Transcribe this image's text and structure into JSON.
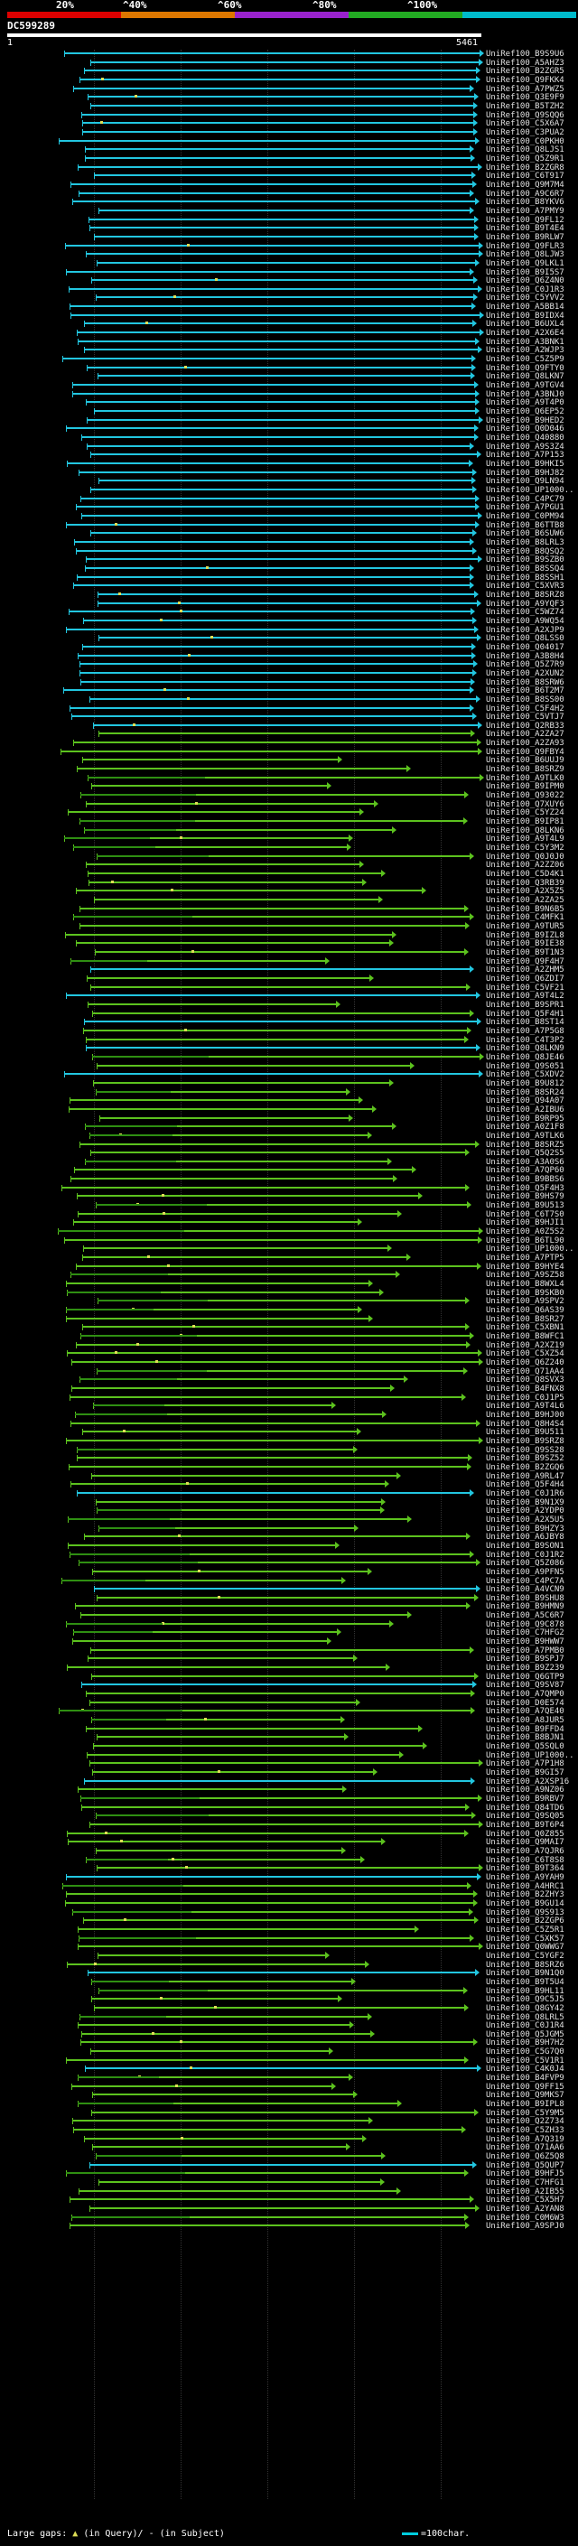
{
  "scale": {
    "labels": [
      "20%",
      "^40%",
      "^60%",
      "^80%",
      "^100%"
    ],
    "colors": [
      "#dd0000",
      "#dd7700",
      "#9922cc",
      "#22aa22",
      "#00bbcc"
    ]
  },
  "query": {
    "name": "DC599289",
    "start": "1",
    "end": "5461"
  },
  "footer": {
    "large_gaps_label": "Large gaps:",
    "in_query_label": "(in Query)/",
    "in_subject_label": "(in Subject)",
    "gap_symbol": "▲",
    "subject_symbol": "-",
    "legend_label": "=100char."
  },
  "colors": {
    "cyan": "#22c6e0",
    "green": "#5cc21e",
    "dark_green": "#2f8f12"
  },
  "hits": [
    "UniRef100_B9S9U6",
    "UniRef100_A5AHZ3",
    "UniRef100_B2ZGR5",
    "UniRef100_Q9FKK4",
    "UniRef100_A7PWZ5",
    "UniRef100_Q3E9F9",
    "UniRef100_B5TZH2",
    "UniRef100_Q9SQQ6",
    "UniRef100_C5X6A7",
    "UniRef100_C3PUA2",
    "UniRef100_C0PKH0",
    "UniRef100_Q8LJS1",
    "UniRef100_Q5Z9R1",
    "UniRef100_B2ZGR8",
    "UniRef100_C6T917",
    "UniRef100_Q9M7M4",
    "UniRef100_A9C6R7",
    "UniRef100_B8YKV6",
    "UniRef100_A7PMY9",
    "UniRef100_Q9FL12",
    "UniRef100_B9T4E4",
    "UniRef100_B9RLW7",
    "UniRef100_Q9FLR3",
    "UniRef100_Q8LJW3",
    "UniRef100_Q9LKL1",
    "UniRef100_B9I5S7",
    "UniRef100_Q6Z4N0",
    "UniRef100_C0J1R3",
    "UniRef100_C5YVV2",
    "UniRef100_A5BB14",
    "UniRef100_B9IDX4",
    "UniRef100_B6UXL4",
    "UniRef100_A2X6E4",
    "UniRef100_A3BNK1",
    "UniRef100_A2WJP3",
    "UniRef100_C5Z5P9",
    "UniRef100_Q9FTY0",
    "UniRef100_Q8LKN7",
    "UniRef100_A9TGV4",
    "UniRef100_A3BNJ0",
    "UniRef100_A9T4P0",
    "UniRef100_Q6EP52",
    "UniRef100_B9HED2",
    "UniRef100_Q0D046",
    "UniRef100_Q40880",
    "UniRef100_A9S3Z4",
    "UniRef100_A7P153",
    "UniRef100_B9HKI5",
    "UniRef100_B9HJ82",
    "UniRef100_Q9LN94",
    "UniRef100_UP1000..",
    "UniRef100_C4PC79",
    "UniRef100_A7PGU1",
    "UniRef100_C0PM94",
    "UniRef100_B6TTB8",
    "UniRef100_B6SUW6",
    "UniRef100_B8LRL3",
    "UniRef100_B8QSQ2",
    "UniRef100_B9SZB0",
    "UniRef100_B8SSQ4",
    "UniRef100_B8SSH1",
    "UniRef100_C5XVR3",
    "UniRef100_B8SRZ8",
    "UniRef100_A9YQF3",
    "UniRef100_C5WZ74",
    "UniRef100_A9WQ54",
    "UniRef100_A2XJP9",
    "UniRef100_Q8LSS0",
    "UniRef100_Q04017",
    "UniRef100_A3B8H4",
    "UniRef100_Q5Z7R9",
    "UniRef100_A2XUN2",
    "UniRef100_B8SRW6",
    "UniRef100_B6T2M7",
    "UniRef100_B8SS00",
    "UniRef100_C5F4H2",
    "UniRef100_C5VTJ7",
    "UniRef100_Q2RB33",
    "UniRef100_A2ZA27",
    "UniRef100_A2ZA93",
    "UniRef100_Q9FBY4",
    "UniRef100_B6UUJ9",
    "UniRef100_B8SRZ9",
    "UniRef100_A9TLK0",
    "UniRef100_B9IPM0",
    "UniRef100_Q93022",
    "UniRef100_Q7XUY6",
    "UniRef100_C5YZ24",
    "UniRef100_B9IP81",
    "UniRef100_Q8LKN6",
    "UniRef100_A9T4L9",
    "UniRef100_C5Y3M2",
    "UniRef100_Q0J0J0",
    "UniRef100_A2ZZ06",
    "UniRef100_C5D4K1",
    "UniRef100_Q3RB39",
    "UniRef100_A2X5Z5",
    "UniRef100_A2ZA25",
    "UniRef100_B9N6B5",
    "UniRef100_C4MFK1",
    "UniRef100_A9TUR5",
    "UniRef100_B9IZL8",
    "UniRef100_B9IE38",
    "UniRef100_B9T1N3",
    "UniRef100_Q9F4H7",
    "UniRef100_A2ZHM5",
    "UniRef100_Q6ZDI7",
    "UniRef100_C5VF21",
    "UniRef100_A9T4L2",
    "UniRef100_B9SPR1",
    "UniRef100_Q5F4H1",
    "UniRef100_B8ST14",
    "UniRef100_A7P5G8",
    "UniRef100_C4T3P2",
    "UniRef100_Q8LKN9",
    "UniRef100_Q8JE46",
    "UniRef100_Q9S051",
    "UniRef100_C5XDV2",
    "UniRef100_B9U812",
    "UniRef100_B8SR24",
    "UniRef100_Q94A07",
    "UniRef100_A2IBU6",
    "UniRef100_B9RP95",
    "UniRef100_A0Z1F8",
    "UniRef100_A9TLK6",
    "UniRef100_B8SRZ5",
    "UniRef100_Q5Q2S5",
    "UniRef100_A3A0S6",
    "UniRef100_A7QP60",
    "UniRef100_B9BBS6",
    "UniRef100_Q5F4H3",
    "UniRef100_B9HS79",
    "UniRef100_B9U513",
    "UniRef100_C6T7S0",
    "UniRef100_B9HJI1",
    "UniRef100_A0Z5S2",
    "UniRef100_B6TL90",
    "UniRef100_UP1000..",
    "UniRef100_A7PTP5",
    "UniRef100_B9HYE4",
    "UniRef100_A9SZ58",
    "UniRef100_B8WXL4",
    "UniRef100_B9SKB0",
    "UniRef100_A9SPV2",
    "UniRef100_Q6AS39",
    "UniRef100_B8SR27",
    "UniRef100_C5XBN1",
    "UniRef100_B8WFC1",
    "UniRef100_A2XZ19",
    "UniRef100_C5XZ54",
    "UniRef100_Q6Z240",
    "UniRef100_Q71AA4",
    "UniRef100_Q8SVX3",
    "UniRef100_B4FNX8",
    "UniRef100_C0J1P5",
    "UniRef100_A9T4L6",
    "UniRef100_B9HJ00",
    "UniRef100_Q8H4S4",
    "UniRef100_B9U511",
    "UniRef100_B9SRZ8",
    "UniRef100_Q9SS28",
    "UniRef100_B9SZ52",
    "UniRef100_B2ZGQ6",
    "UniRef100_A9RL47",
    "UniRef100_Q5F4H4",
    "UniRef100_C0J1R6",
    "UniRef100_B9N1X9",
    "UniRef100_A2YDP0",
    "UniRef100_A2X5U5",
    "UniRef100_B9HZY3",
    "UniRef100_A6JBY8",
    "UniRef100_B9SON1",
    "UniRef100_C0J1R2",
    "UniRef100_Q5Z086",
    "UniRef100_A9PFN5",
    "UniRef100_C4PC7A",
    "UniRef100_A4VCN9",
    "UniRef100_B9SHU8",
    "UniRef100_B9HMN9",
    "UniRef100_A5C6R7",
    "UniRef100_Q9C878",
    "UniRef100_C7HFG2",
    "UniRef100_B9HWW7",
    "UniRef100_A7PMB0",
    "UniRef100_B9SPJ7",
    "UniRef100_B9Z239",
    "UniRef100_Q6GTP9",
    "UniRef100_Q9SV87",
    "UniRef100_A7QMP0",
    "UniRef100_D0E574",
    "UniRef100_A7QE40",
    "UniRef100_A8JUR5",
    "UniRef100_B9FFD4",
    "UniRef100_B8BJN1",
    "UniRef100_Q5SQL0",
    "UniRef100_UP1000..",
    "UniRef100_A7P1H8",
    "UniRef100_B9GI57",
    "UniRef100_A2XSP16",
    "UniRef100_A9NZ06",
    "UniRef100_B9RBV7",
    "UniRef100_Q84TD6",
    "UniRef100_Q9SQ05",
    "UniRef100_B9T6P4",
    "UniRef100_Q0Z855",
    "UniRef100_Q9MAI7",
    "UniRef100_A7QJR6",
    "UniRef100_C6T8S8",
    "UniRef100_B9T364",
    "UniRef100_A9YAH9",
    "UniRef100_A4HRC1",
    "UniRef100_B2ZHY3",
    "UniRef100_B9GU14",
    "UniRef100_Q9S913",
    "UniRef100_B2ZGP6",
    "UniRef100_C5Z5R1",
    "UniRef100_C5XK57",
    "UniRef100_Q0WWG7",
    "UniRef100_C5YGF2",
    "UniRef100_B8SRZ6",
    "UniRef100_B9N1Q0",
    "UniRef100_B9T5U4",
    "UniRef100_B9HL11",
    "UniRef100_Q9C5J5",
    "UniRef100_Q8GY42",
    "UniRef100_Q8LRL5",
    "UniRef100_C0J1R4",
    "UniRef100_Q5JGM5",
    "UniRef100_B9H7H2",
    "UniRef100_C5G7Q0",
    "UniRef100_C5V1R1",
    "UniRef100_C4K0J4",
    "UniRef100_B4FVP9",
    "UniRef100_Q9FF15",
    "UniRef100_Q9MKS7",
    "UniRef100_B9IPL8",
    "UniRef100_C5Y9M5",
    "UniRef100_Q2Z734",
    "UniRef100_C5ZH33",
    "UniRef100_A7Q319",
    "UniRef100_Q71AA6",
    "UniRef100_Q6Z5Q8",
    "UniRef100_Q5QUP7",
    "UniRef100_B9HFJ5",
    "UniRef100_C7HFG1",
    "UniRef100_A2IB55",
    "UniRef100_C5X5H7",
    "UniRef100_A2YAN8",
    "UniRef100_C0M6W3",
    "UniRef100_A9SPJ0"
  ]
}
